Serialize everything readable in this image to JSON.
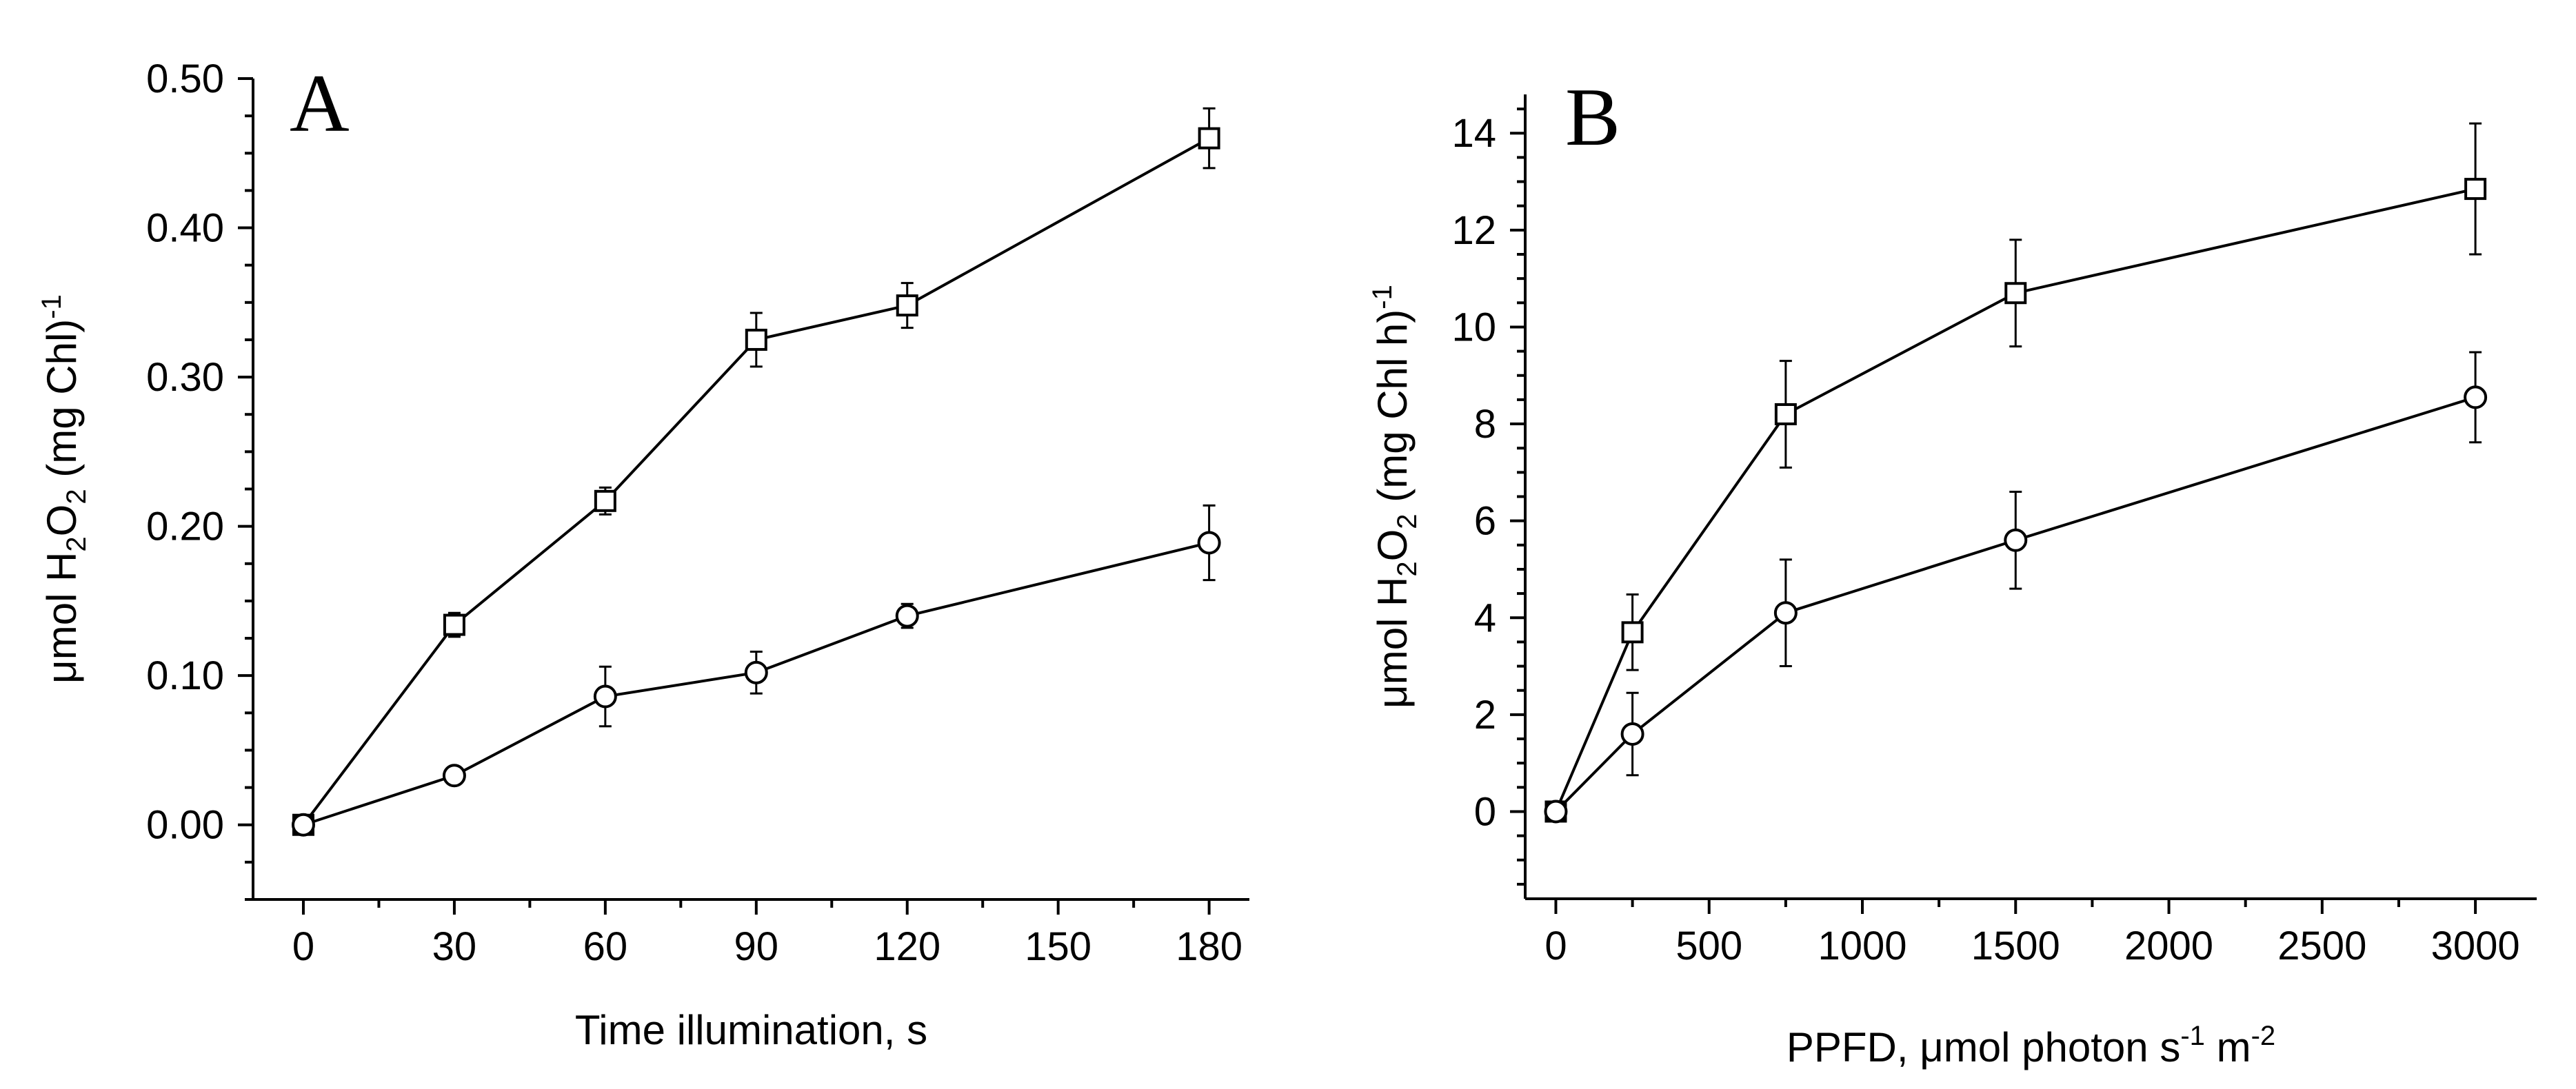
{
  "chart_data": [
    {
      "type": "line",
      "panel_label": "A",
      "xlabel": "Time illumination, s",
      "ylabel_parts": [
        "μmol H",
        "2",
        "O",
        "2",
        " (mg Chl)",
        "-1"
      ],
      "xlim": [
        -10,
        188
      ],
      "ylim": [
        -0.05,
        0.5
      ],
      "xticks": [
        0,
        30,
        60,
        90,
        120,
        150,
        180
      ],
      "xtick_labels": [
        "0",
        "30",
        "60",
        "90",
        "120",
        "150",
        "180"
      ],
      "yticks": [
        0,
        0.1,
        0.2,
        0.3,
        0.4,
        0.5
      ],
      "ytick_labels": [
        "0.00",
        "0.10",
        "0.20",
        "0.30",
        "0.40",
        "0.50"
      ],
      "grid": false,
      "series": [
        {
          "name": "squares",
          "marker": "square",
          "x": [
            0,
            30,
            60,
            90,
            120,
            180
          ],
          "values": [
            0.0,
            0.134,
            0.217,
            0.325,
            0.348,
            0.46
          ],
          "errors": [
            0.003,
            0.008,
            0.009,
            0.018,
            0.015,
            0.02
          ]
        },
        {
          "name": "circles",
          "marker": "circle",
          "x": [
            0,
            30,
            60,
            90,
            120,
            180
          ],
          "values": [
            0.0,
            0.033,
            0.086,
            0.102,
            0.14,
            0.189
          ],
          "errors": [
            0.003,
            0.005,
            0.02,
            0.014,
            0.008,
            0.025
          ]
        }
      ]
    },
    {
      "type": "line",
      "panel_label": "B",
      "xlabel_parts": [
        "PPFD, μmol photon s",
        "-1",
        " m",
        "-2"
      ],
      "ylabel_parts": [
        "μmol H",
        "2",
        "O",
        "2",
        " (mg Chl h)",
        "-1"
      ],
      "xlim": [
        -100,
        3200
      ],
      "ylim": [
        -1.8,
        14.8
      ],
      "xticks": [
        0,
        500,
        1000,
        1500,
        2000,
        2500,
        3000
      ],
      "xtick_labels": [
        "0",
        "500",
        "1000",
        "1500",
        "2000",
        "2500",
        "3000"
      ],
      "yticks": [
        0,
        2,
        4,
        6,
        8,
        10,
        12,
        14
      ],
      "ytick_labels": [
        "0",
        "2",
        "4",
        "6",
        "8",
        "10",
        "12",
        "14"
      ],
      "grid": false,
      "series": [
        {
          "name": "squares",
          "marker": "square",
          "x": [
            0,
            250,
            750,
            1500,
            3000
          ],
          "values": [
            0.0,
            3.7,
            8.2,
            10.7,
            12.85
          ],
          "errors": [
            0.1,
            0.78,
            1.1,
            1.1,
            1.35
          ]
        },
        {
          "name": "circles",
          "marker": "circle",
          "x": [
            0,
            250,
            750,
            1500,
            3000
          ],
          "values": [
            0.0,
            1.6,
            4.1,
            5.6,
            8.55
          ],
          "errors": [
            0.1,
            0.85,
            1.1,
            1.0,
            0.93
          ]
        }
      ]
    }
  ]
}
